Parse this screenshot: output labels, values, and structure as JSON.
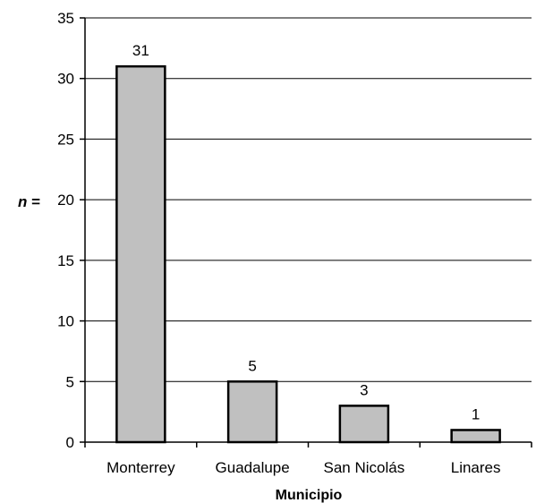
{
  "chart_data": {
    "type": "bar",
    "categories": [
      "Monterrey",
      "Guadalupe",
      "San Nicolás",
      "Linares"
    ],
    "values": [
      31,
      5,
      3,
      1
    ],
    "data_labels": [
      "31",
      "5",
      "3",
      "1"
    ],
    "xlabel": "Municipio",
    "ylabel_var": "n",
    "ylabel_eq": " =",
    "ylim": [
      0,
      35
    ],
    "yticks": [
      0,
      5,
      10,
      15,
      20,
      25,
      30,
      35
    ],
    "grid": true,
    "bar_color": "#c0c0c0",
    "bar_stroke": "#000000"
  }
}
